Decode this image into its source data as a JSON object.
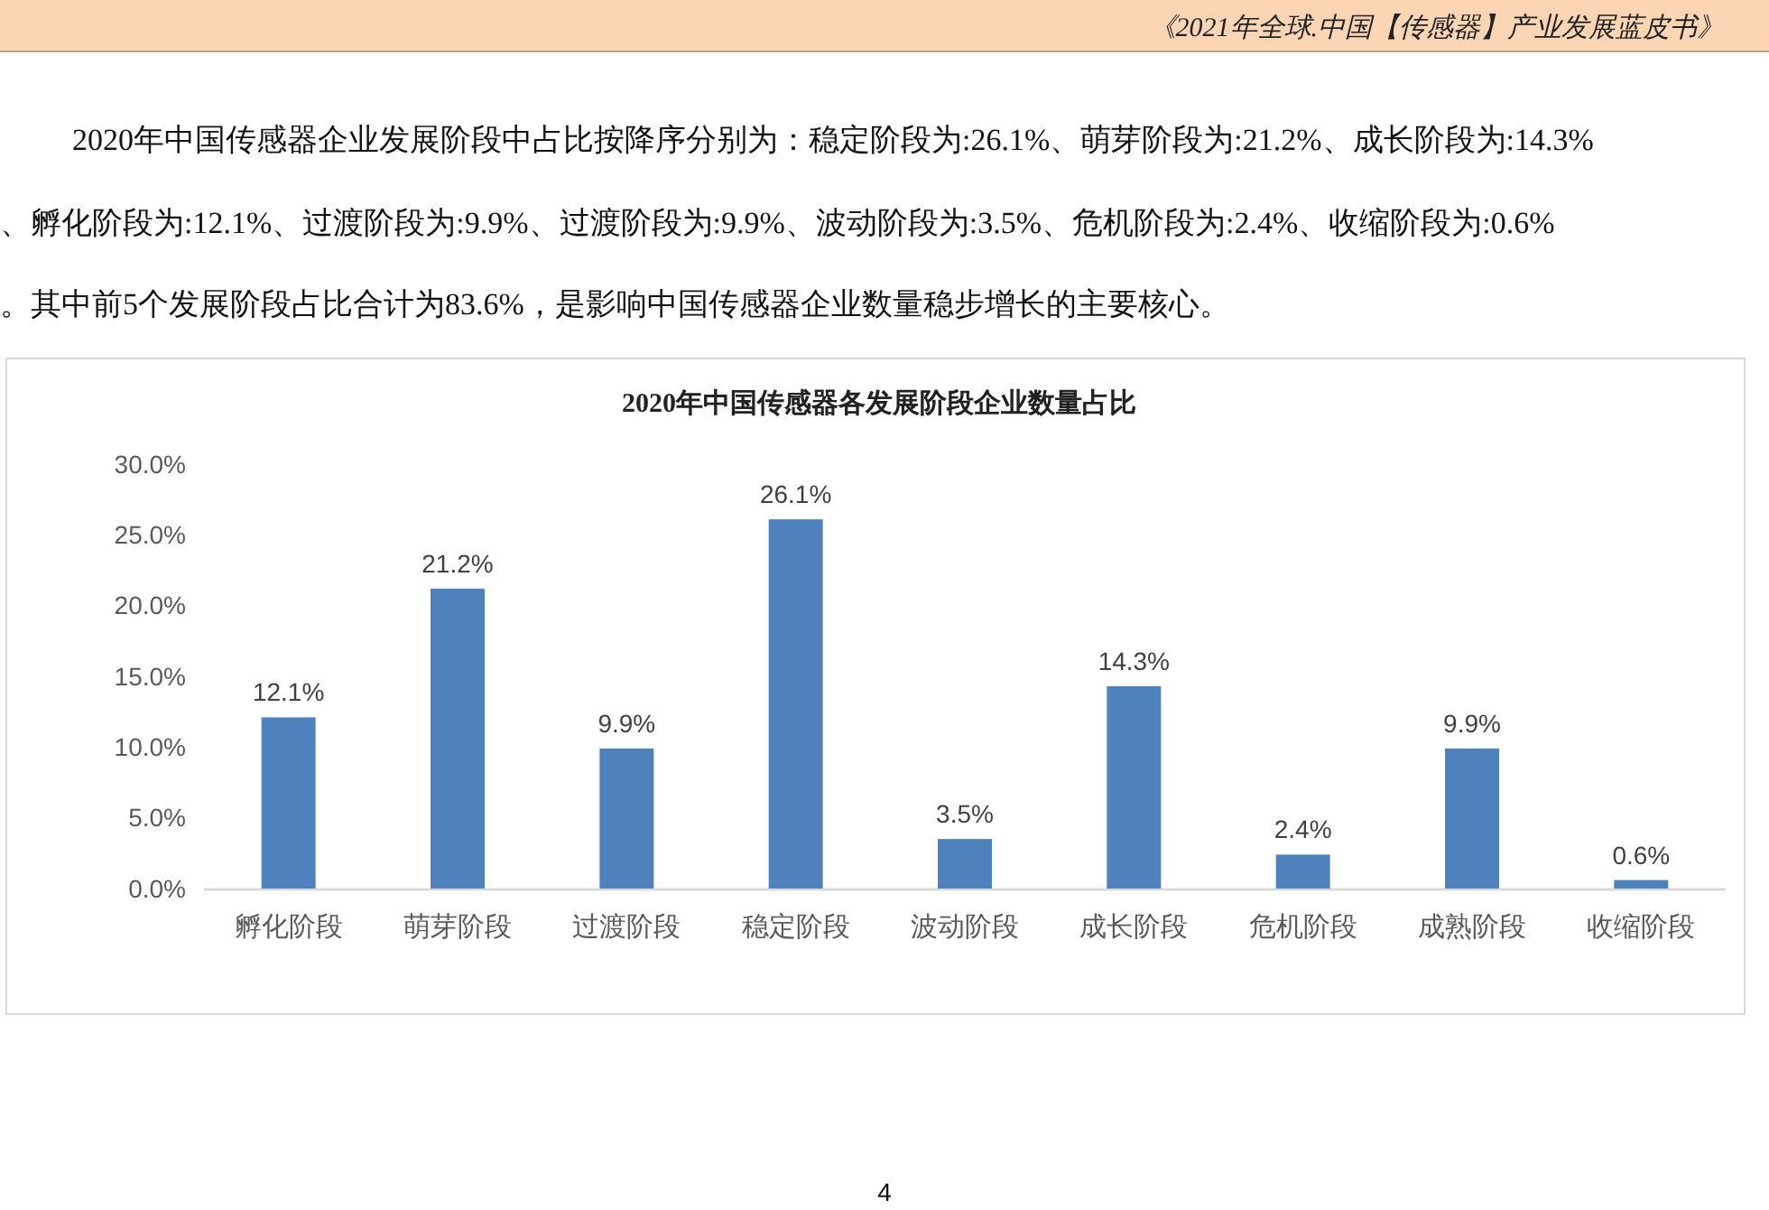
{
  "chart_data": {
    "type": "bar",
    "title": "2020年中国传感器各发展阶段企业数量占比",
    "categories": [
      "孵化阶段",
      "萌芽阶段",
      "过渡阶段",
      "稳定阶段",
      "波动阶段",
      "成长阶段",
      "危机阶段",
      "成熟阶段",
      "收缩阶段"
    ],
    "values": [
      12.1,
      21.2,
      9.9,
      26.1,
      3.5,
      14.3,
      2.4,
      9.9,
      0.6
    ],
    "value_labels": [
      "12.1%",
      "21.2%",
      "9.9%",
      "26.1%",
      "3.5%",
      "14.3%",
      "2.4%",
      "9.9%",
      "0.6%"
    ],
    "color": "#4f81bd",
    "ylim": [
      0,
      30
    ],
    "yticks": [
      {
        "value": 0,
        "label": "0.0%"
      },
      {
        "value": 5,
        "label": "5.0%"
      },
      {
        "value": 10,
        "label": "10.0%"
      },
      {
        "value": 15,
        "label": "15.0%"
      },
      {
        "value": 20,
        "label": "20.0%"
      },
      {
        "value": 25,
        "label": "25.0%"
      },
      {
        "value": 30,
        "label": "30.0%"
      }
    ],
    "annotations": [
      "《2021年全球.中国【传感器】产业发展蓝皮书》",
      "2020年中国传感器企业发展阶段中占比按降序分别为：稳定阶段为:26.1%、萌芽阶段为:21.2%、成长阶段为:14.3%",
      "、孵化阶段为:12.1%、过渡阶段为:9.9%、过渡阶段为:9.9%、波动阶段为:3.5%、危机阶段为:2.4%、收缩阶段为:0.6%",
      "。其中前5个发展阶段占比合计为83.6%，是影响中国传感器企业数量稳步增长的主要核心。",
      "4"
    ]
  }
}
